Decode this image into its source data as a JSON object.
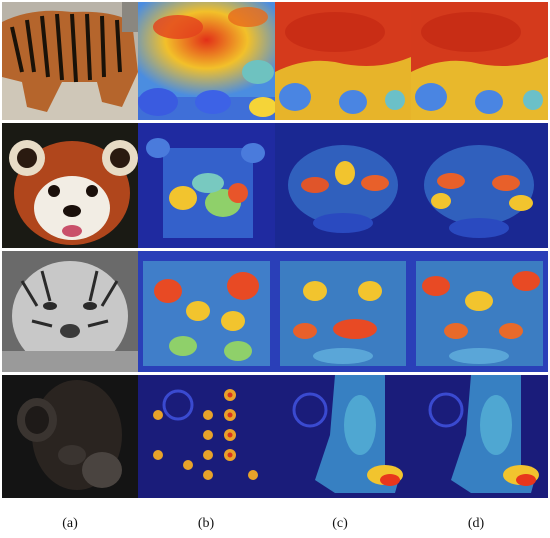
{
  "figure": {
    "columns": [
      {
        "caption": "(a)",
        "kind": "original"
      },
      {
        "caption": "(b)",
        "kind": "heatmap"
      },
      {
        "caption": "(c)",
        "kind": "heatmap"
      },
      {
        "caption": "(d)",
        "kind": "heatmap"
      }
    ],
    "rows": [
      {
        "subject": "tiger-walking"
      },
      {
        "subject": "red-panda"
      },
      {
        "subject": "white-tiger-face"
      },
      {
        "subject": "chimpanzee"
      }
    ]
  }
}
